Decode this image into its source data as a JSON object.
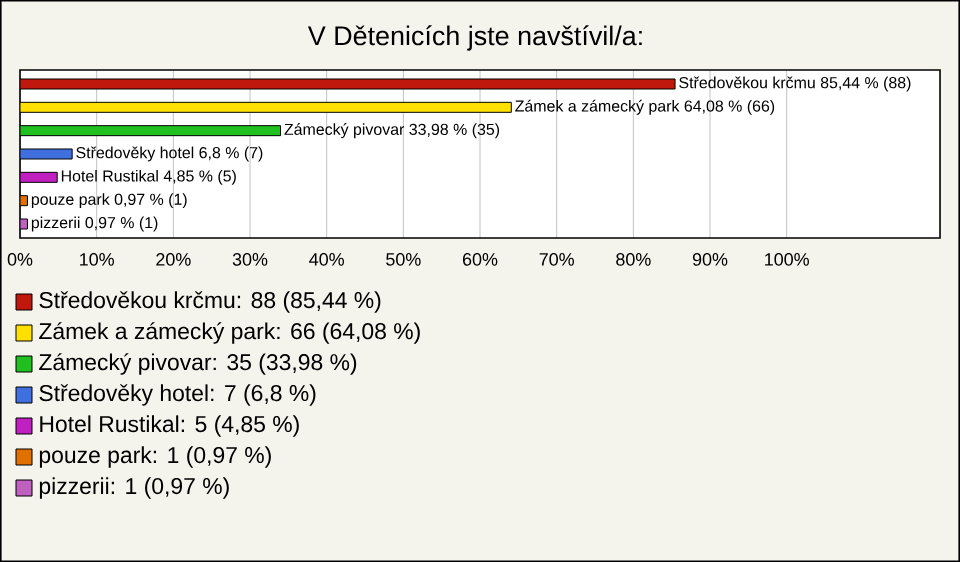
{
  "chart_data": {
    "type": "bar",
    "orientation": "horizontal",
    "title": "V Dětenicích jste navštívil/a:",
    "categories": [
      null,
      null,
      null,
      null,
      null,
      null,
      null
    ],
    "values": [
      85.44,
      64.08,
      33.98,
      6.8,
      4.85,
      0.97,
      0.97
    ],
    "value_labels": [
      "Středověkou krčmu 85,44 % (88)",
      "Zámek a zámecký park 64,08 % (66)",
      "Zámecký pivovar 33,98 % (35)",
      "Středověky hotel 6,8 % (7)",
      "Hotel Rustikal 4,85 % (5)",
      "pouze park 0,97 % (1)",
      "pizzerii 0,97 % (1)"
    ],
    "colors": [
      "#c0180c",
      "#ffe000",
      "#20c020",
      "#4070e0",
      "#c020c0",
      "#e07000",
      "#c060c0"
    ],
    "xlim": [
      0,
      120
    ],
    "xticks": [
      {
        "value": 0,
        "label": "0%"
      },
      {
        "value": 10,
        "label": "10%"
      },
      {
        "value": 20,
        "label": "20%"
      },
      {
        "value": 30,
        "label": "30%"
      },
      {
        "value": 40,
        "label": "40%"
      },
      {
        "value": 50,
        "label": "50%"
      },
      {
        "value": 60,
        "label": "60%"
      },
      {
        "value": 70,
        "label": "70%"
      },
      {
        "value": 80,
        "label": "80%"
      },
      {
        "value": 90,
        "label": "90%"
      },
      {
        "value": 100,
        "label": "100%"
      }
    ],
    "grid": "x",
    "annotations": [
      "Středověkou krčmu: 88 (85,44 %)",
      "Zámek a zámecký park: 66 (64,08 %)",
      "Zámecký pivovar: 35 (33,98 %)",
      "Středověky hotel: 7 (6,8 %)",
      "Hotel Rustikal: 5 (4,85 %)",
      "pouze park: 1 (0,97 %)",
      "pizzerii: 1 (0,97 %)"
    ]
  }
}
